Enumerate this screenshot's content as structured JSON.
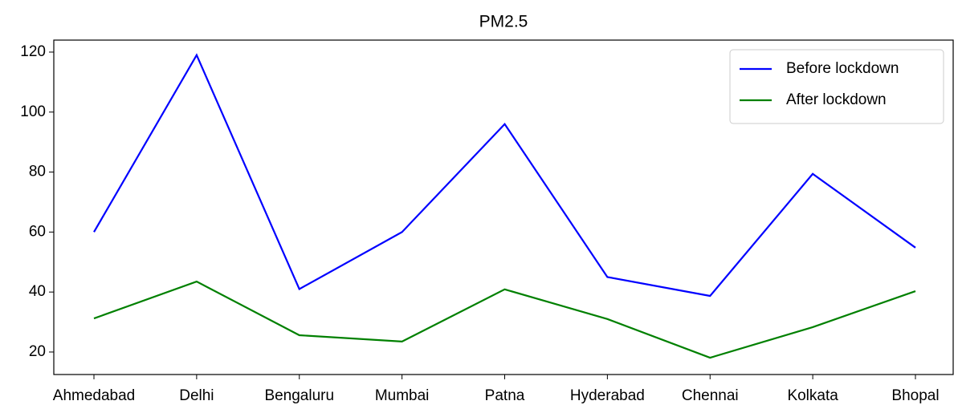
{
  "chart_data": {
    "type": "line",
    "title": "PM2.5",
    "categories": [
      "Ahmedabad",
      "Delhi",
      "Bengaluru",
      "Mumbai",
      "Patna",
      "Hyderabad",
      "Chennai",
      "Kolkata",
      "Bhopal"
    ],
    "series": [
      {
        "name": "Before lockdown",
        "color": "#0000ff",
        "values": [
          60,
          119,
          41,
          60,
          96,
          45,
          38.7,
          79.4,
          54.8
        ]
      },
      {
        "name": "After lockdown",
        "color": "#008000",
        "values": [
          31.2,
          43.5,
          25.6,
          23.5,
          40.9,
          31,
          18.1,
          28.3,
          40.3
        ]
      }
    ],
    "ylim": [
      12.5,
      124
    ],
    "yticks": [
      20,
      40,
      60,
      80,
      100,
      120
    ],
    "legend": "upper right"
  }
}
